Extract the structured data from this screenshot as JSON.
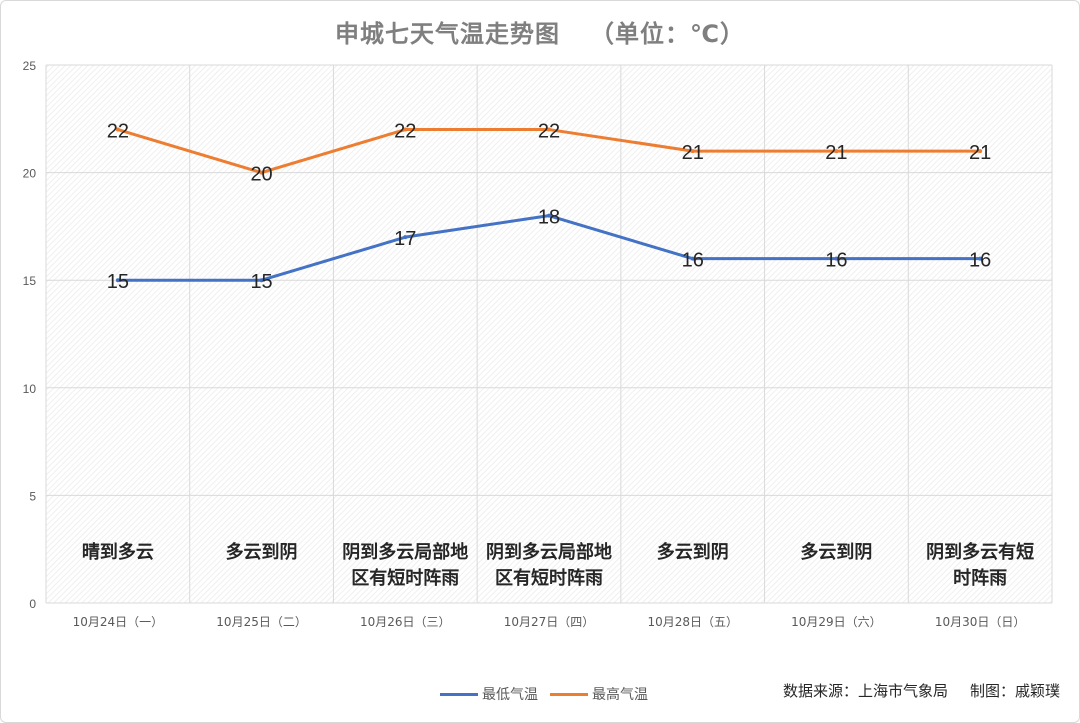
{
  "title": "申城七天气温走势图",
  "unit": "（单位：℃）",
  "source_label": "数据来源：上海市气象局",
  "author_label": "制图：戚颖璞",
  "colors": {
    "low": "#4472c4",
    "high": "#ed7d31",
    "grid": "#d9d9d9",
    "text": "#595959"
  },
  "chart_data": {
    "type": "line",
    "categories": [
      "10月24日（一）",
      "10月25日（二）",
      "10月26日（三）",
      "10月27日（四）",
      "10月28日（五）",
      "10月29日（六）",
      "10月30日（日）"
    ],
    "series": [
      {
        "name": "最低气温",
        "values": [
          15,
          15,
          17,
          18,
          16,
          16,
          16
        ]
      },
      {
        "name": "最高气温",
        "values": [
          22,
          20,
          22,
          22,
          21,
          21,
          21
        ]
      }
    ],
    "weather": [
      [
        "晴到多云"
      ],
      [
        "多云到阴"
      ],
      [
        "阴到多云局部地",
        "区有短时阵雨"
      ],
      [
        "阴到多云局部地",
        "区有短时阵雨"
      ],
      [
        "多云到阴"
      ],
      [
        "多云到阴"
      ],
      [
        "阴到多云有短",
        "时阵雨"
      ]
    ],
    "ylim": [
      0,
      25
    ],
    "yticks": [
      0,
      5,
      10,
      15,
      20,
      25
    ],
    "grid": true,
    "legend": "bottom"
  }
}
